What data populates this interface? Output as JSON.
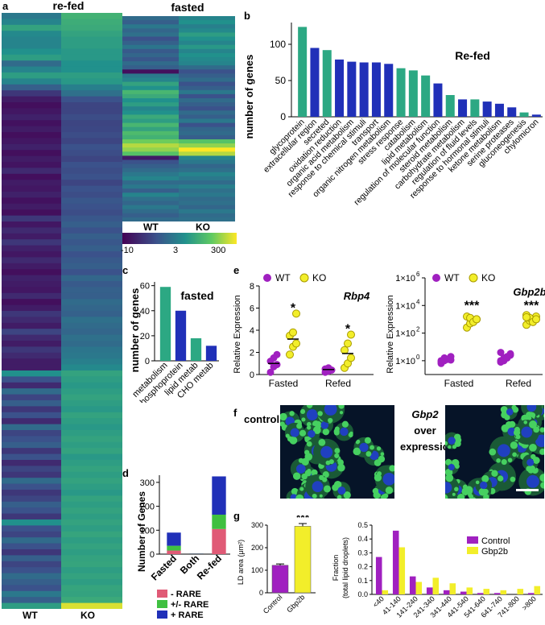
{
  "panel_letters": {
    "a": "a",
    "b": "b",
    "c": "c",
    "d": "d",
    "e": "e",
    "f": "f",
    "g": "g"
  },
  "heatmap": {
    "refed_title": "re-fed",
    "fasted_title": "fasted",
    "wt_label": "WT",
    "ko_label": "KO",
    "scale_ticks": [
      "-10",
      "3",
      "300"
    ],
    "colormap": [
      "#440154",
      "#3b528b",
      "#21918c",
      "#5ec962",
      "#fde725"
    ],
    "refed_wt_fractions": [
      0.45,
      0.5,
      0.62,
      0.52,
      0.5,
      0.5,
      0.55,
      0.6,
      0.4,
      0.5,
      0.6,
      0.5,
      0.35,
      0.2,
      0.1,
      0.05,
      0.08,
      0.12,
      0.06,
      0.1,
      0.05,
      0.08,
      0.12,
      0.05,
      0.1,
      0.07,
      0.15,
      0.05,
      0.1,
      0.08,
      0.12,
      0.06,
      0.1,
      0.05,
      0.2,
      0.08,
      0.15,
      0.1,
      0.2,
      0.12,
      0.08,
      0.15,
      0.1,
      0.05,
      0.12,
      0.1,
      0.08,
      0.15,
      0.05,
      0.1,
      0.2,
      0.15,
      0.1,
      0.25,
      0.15,
      0.1,
      0.2,
      0.15,
      0.1,
      0.1,
      0.55,
      0.3,
      0.15,
      0.4,
      0.25,
      0.35,
      0.2,
      0.3,
      0.15,
      0.4,
      0.25,
      0.3,
      0.35,
      0.2,
      0.3,
      0.15,
      0.25,
      0.2,
      0.4,
      0.3,
      0.2,
      0.25,
      0.35,
      0.3,
      0.2,
      0.55,
      0.3,
      0.25,
      0.4,
      0.3,
      0.2,
      0.35,
      0.25,
      0.3,
      0.4,
      0.35,
      0.3,
      0.45,
      0.35,
      0.6
    ],
    "refed_ko_fractions": [
      0.68,
      0.66,
      0.65,
      0.62,
      0.6,
      0.6,
      0.58,
      0.58,
      0.55,
      0.55,
      0.6,
      0.58,
      0.48,
      0.42,
      0.3,
      0.25,
      0.25,
      0.28,
      0.25,
      0.26,
      0.28,
      0.25,
      0.3,
      0.28,
      0.25,
      0.3,
      0.28,
      0.3,
      0.25,
      0.3,
      0.28,
      0.32,
      0.3,
      0.28,
      0.32,
      0.35,
      0.3,
      0.35,
      0.32,
      0.35,
      0.3,
      0.33,
      0.35,
      0.3,
      0.38,
      0.33,
      0.36,
      0.35,
      0.4,
      0.38,
      0.36,
      0.42,
      0.4,
      0.38,
      0.42,
      0.4,
      0.44,
      0.45,
      0.48,
      0.52,
      0.62,
      0.6,
      0.58,
      0.6,
      0.62,
      0.6,
      0.58,
      0.62,
      0.6,
      0.58,
      0.6,
      0.62,
      0.6,
      0.62,
      0.58,
      0.6,
      0.62,
      0.6,
      0.62,
      0.6,
      0.58,
      0.62,
      0.6,
      0.62,
      0.6,
      0.62,
      0.6,
      0.63,
      0.6,
      0.62,
      0.6,
      0.62,
      0.63,
      0.6,
      0.62,
      0.6,
      0.63,
      0.62,
      0.65,
      0.95
    ],
    "fasted_wt_fractions": [
      0.4,
      0.35,
      0.45,
      0.38,
      0.42,
      0.3,
      0.36,
      0.44,
      0.33,
      0.38,
      0.32,
      0.4,
      0.35,
      0.05,
      0.45,
      0.5,
      0.62,
      0.55,
      0.7,
      0.65,
      0.55,
      0.6,
      0.5,
      0.55,
      0.65,
      0.6,
      0.7,
      0.62,
      0.72,
      0.68,
      0.8,
      0.9,
      0.85,
      0.75,
      0.1,
      0.3,
      0.35,
      0.4,
      0.45,
      0.5,
      0.4,
      0.45,
      0.35,
      0.5,
      0.42,
      0.38,
      0.45,
      0.4,
      0.35,
      0.4
    ],
    "fasted_ko_fractions": [
      0.5,
      0.55,
      0.48,
      0.52,
      0.6,
      0.55,
      0.5,
      0.58,
      0.5,
      0.55,
      0.52,
      0.5,
      0.4,
      0.3,
      0.35,
      0.4,
      0.3,
      0.35,
      0.45,
      0.3,
      0.4,
      0.35,
      0.3,
      0.4,
      0.35,
      0.45,
      0.3,
      0.38,
      0.4,
      0.35,
      0.75,
      0.85,
      1.0,
      0.9,
      0.5,
      0.45,
      0.38,
      0.42,
      0.5,
      0.45,
      0.4,
      0.48,
      0.42,
      0.45,
      0.4,
      0.42,
      0.38,
      0.45,
      0.4,
      0.42
    ]
  },
  "colors": {
    "green": "#2ca883",
    "blue": "#2030b8",
    "pink": "#e05a76",
    "lightgreen": "#3fc040",
    "purple": "#a020c0",
    "yellow": "#f2ee2a",
    "yellow_stroke": "#a89a00"
  },
  "chart_b": {
    "type": "bar",
    "title": "Re-fed",
    "ylabel": "number of genes",
    "ylim": [
      0,
      130
    ],
    "yticks": [
      0,
      50,
      100
    ],
    "categories": [
      "glycoprotein",
      "extracellular region",
      "secreted",
      "oxidation reduction",
      "organic acid metabolism",
      "response to chemical stimuli",
      "transport",
      "organic nitrogen metabolism",
      "stress response",
      "catabolism",
      "lipid metabolism",
      "regulation of molecular function",
      "steroid metabolism",
      "carbohydrate metabolism",
      "regulation of fluid levels",
      "response to hormonal stimuli",
      "ketone metabolism",
      "serine proteases",
      "gluconeogenesis",
      "chylomicron"
    ],
    "values": [
      124,
      95,
      92,
      79,
      76,
      75,
      75,
      73,
      67,
      64,
      57,
      46,
      30,
      24,
      24,
      21,
      18,
      13,
      6,
      3
    ],
    "bar_colors": [
      "green",
      "blue",
      "green",
      "blue",
      "blue",
      "blue",
      "blue",
      "blue",
      "green",
      "green",
      "green",
      "blue",
      "green",
      "blue",
      "green",
      "blue",
      "blue",
      "blue",
      "green",
      "blue"
    ]
  },
  "chart_c": {
    "type": "bar",
    "title": "fasted",
    "ylabel": "number of genes",
    "ylim": [
      0,
      63
    ],
    "yticks": [
      0,
      20,
      40,
      60
    ],
    "categories": [
      "metabolism",
      "phosphoprotein",
      "lipid metab",
      "CHO metab"
    ],
    "values": [
      59,
      40,
      18,
      12
    ],
    "bar_colors": [
      "green",
      "blue",
      "green",
      "blue"
    ]
  },
  "chart_d": {
    "type": "stacked-bar",
    "ylabel": "Number of Genes",
    "ylim": [
      0,
      330
    ],
    "yticks": [
      0,
      100,
      200,
      300
    ],
    "categories": [
      "Fasted",
      "Both",
      "Re-fed"
    ],
    "series": [
      {
        "name": "- RARE",
        "color": "pink",
        "values": [
          15,
          1,
          105
        ]
      },
      {
        "name": "+/- RARE",
        "color": "lightgreen",
        "values": [
          20,
          1,
          60
        ]
      },
      {
        "name": "+ RARE",
        "color": "blue",
        "values": [
          55,
          1,
          160
        ]
      }
    ]
  },
  "chart_e1": {
    "type": "scatter",
    "title": "Rbp4",
    "ylabel": "Relative Expression",
    "ylim": [
      0,
      8
    ],
    "yticks": [
      0,
      2,
      4,
      6,
      8
    ],
    "groups": [
      "Fasted",
      "Refed"
    ],
    "legend": [
      "WT",
      "KO"
    ],
    "wt": [
      [
        0.2,
        0.7,
        0.9,
        1.2,
        1.5,
        1.8
      ],
      [
        0.2,
        0.3,
        0.4,
        0.5,
        0.6
      ]
    ],
    "ko": [
      [
        1.8,
        2.5,
        2.8,
        3.5,
        3.8,
        5.5
      ],
      [
        0.6,
        1.0,
        1.5,
        2.2,
        2.8,
        3.6
      ]
    ],
    "means_wt": [
      1.0,
      0.45
    ],
    "means_ko": [
      3.2,
      1.9
    ],
    "significance": [
      "*",
      "*"
    ]
  },
  "chart_e2": {
    "type": "scatter",
    "title": "Gbp2b",
    "ylabel": "Relative Expression",
    "yscale": "log",
    "ylim_exp": [
      -1,
      6
    ],
    "yticks": [
      "10",
      "10",
      "10",
      "10"
    ],
    "ytick_exps": [
      "0",
      "2",
      "4",
      "6"
    ],
    "ylabel_exp_text": [
      "1×10",
      "1×10",
      "1×10",
      "1×10"
    ],
    "groups": [
      "Fasted",
      "Refed"
    ],
    "legend": [
      "WT",
      "KO"
    ],
    "wt_exp": [
      [
        -0.2,
        0.0,
        0.1,
        0.05,
        -0.1,
        0.2,
        0.1,
        0.3,
        0.0
      ],
      [
        -0.1,
        0.0,
        0.2,
        0.4,
        0.6,
        0.1,
        0.3,
        0.5,
        0.0,
        0.2
      ]
    ],
    "ko_exp": [
      [
        2.4,
        2.7,
        2.9,
        3.0,
        3.2,
        3.1,
        2.8,
        3.0
      ],
      [
        2.6,
        2.9,
        3.0,
        3.2,
        3.3,
        3.1,
        2.8,
        3.0,
        3.15
      ]
    ],
    "significance": [
      "***",
      "***"
    ]
  },
  "panel_f": {
    "control_label": "control",
    "overexp_gene": "Gbp2",
    "overexp_text_1": "over",
    "overexp_text_2": "expression"
  },
  "chart_g1": {
    "type": "bar",
    "ylabel": "LD area (μm²)",
    "ylim": [
      0,
      300
    ],
    "yticks": [
      0,
      100,
      200,
      300
    ],
    "categories": [
      "Control",
      "Gbp2b"
    ],
    "values": [
      122,
      295
    ],
    "errors": [
      6,
      12
    ],
    "bar_colors": [
      "purple",
      "yellow"
    ],
    "significance": "***"
  },
  "chart_g2": {
    "type": "bar",
    "ylabel_1": "Fraction",
    "ylabel_2": "(total lipid droplets)",
    "ylim": [
      0,
      0.5
    ],
    "yticks": [
      "0.0",
      "0.1",
      "0.2",
      "0.3",
      "0.4",
      "0.5"
    ],
    "categories": [
      "<40",
      "41-140",
      "141-240",
      "241-340",
      "341-440",
      "441-540",
      "541-640",
      "641-740",
      "741-800",
      ">800"
    ],
    "series": [
      {
        "name": "Control",
        "color": "purple",
        "values": [
          0.27,
          0.46,
          0.13,
          0.05,
          0.03,
          0.02,
          0.01,
          0.01,
          0.0,
          0.01
        ]
      },
      {
        "name": "Gbp2b",
        "color": "yellow",
        "values": [
          0.03,
          0.34,
          0.09,
          0.12,
          0.08,
          0.05,
          0.04,
          0.03,
          0.04,
          0.06
        ]
      }
    ]
  }
}
